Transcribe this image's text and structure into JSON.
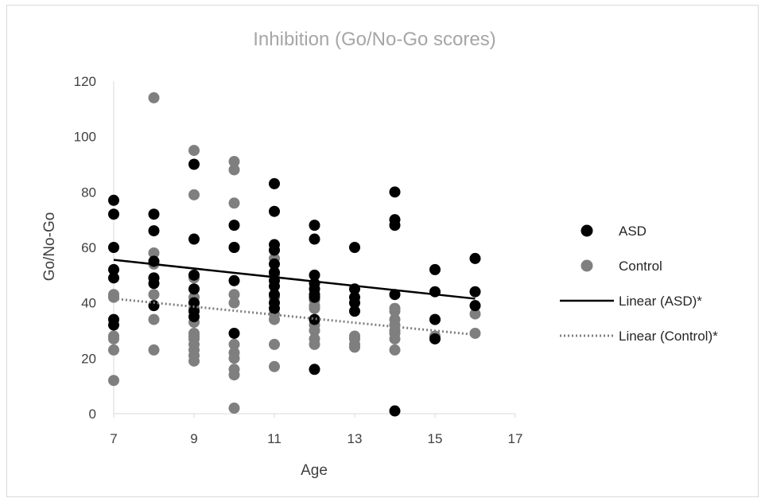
{
  "chart_data": {
    "type": "scatter",
    "title": "Inhibition (Go/No-Go scores)",
    "xlabel": "Age",
    "ylabel": "Go/No-Go",
    "xlim": [
      7,
      17
    ],
    "ylim": [
      0,
      120
    ],
    "xticks": [
      7,
      9,
      11,
      13,
      15,
      17
    ],
    "yticks": [
      0,
      20,
      40,
      60,
      80,
      100,
      120
    ],
    "grid": false,
    "legend_position": "right",
    "series": [
      {
        "name": "ASD",
        "color": "#000000",
        "points": [
          [
            7,
            77
          ],
          [
            7,
            72
          ],
          [
            7,
            60
          ],
          [
            7,
            52
          ],
          [
            7,
            49
          ],
          [
            7,
            34
          ],
          [
            7,
            32
          ],
          [
            8,
            72
          ],
          [
            8,
            66
          ],
          [
            8,
            55
          ],
          [
            8,
            49
          ],
          [
            8,
            47
          ],
          [
            8,
            39
          ],
          [
            9,
            90
          ],
          [
            9,
            63
          ],
          [
            9,
            50
          ],
          [
            9,
            45
          ],
          [
            9,
            40
          ],
          [
            9,
            37
          ],
          [
            9,
            35
          ],
          [
            10,
            68
          ],
          [
            10,
            60
          ],
          [
            10,
            48
          ],
          [
            10,
            29
          ],
          [
            11,
            83
          ],
          [
            11,
            73
          ],
          [
            11,
            61
          ],
          [
            11,
            59
          ],
          [
            11,
            54
          ],
          [
            11,
            51
          ],
          [
            11,
            48
          ],
          [
            11,
            46
          ],
          [
            11,
            43
          ],
          [
            11,
            40
          ],
          [
            11,
            38
          ],
          [
            12,
            68
          ],
          [
            12,
            63
          ],
          [
            12,
            50
          ],
          [
            12,
            47
          ],
          [
            12,
            45
          ],
          [
            12,
            43
          ],
          [
            12,
            42
          ],
          [
            12,
            34
          ],
          [
            12,
            16
          ],
          [
            13,
            60
          ],
          [
            13,
            45
          ],
          [
            13,
            42
          ],
          [
            13,
            40
          ],
          [
            13,
            37
          ],
          [
            14,
            80
          ],
          [
            14,
            70
          ],
          [
            14,
            68
          ],
          [
            14,
            43
          ],
          [
            14,
            1
          ],
          [
            15,
            52
          ],
          [
            15,
            44
          ],
          [
            15,
            34
          ],
          [
            15,
            27
          ],
          [
            16,
            56
          ],
          [
            16,
            44
          ],
          [
            16,
            39
          ]
        ]
      },
      {
        "name": "Control",
        "color": "#7f7f7f",
        "points": [
          [
            7,
            43
          ],
          [
            7,
            42
          ],
          [
            7,
            28
          ],
          [
            7,
            27
          ],
          [
            7,
            23
          ],
          [
            7,
            12
          ],
          [
            8,
            114
          ],
          [
            8,
            58
          ],
          [
            8,
            54
          ],
          [
            8,
            49
          ],
          [
            8,
            43
          ],
          [
            8,
            34
          ],
          [
            8,
            23
          ],
          [
            9,
            95
          ],
          [
            9,
            79
          ],
          [
            9,
            50
          ],
          [
            9,
            49
          ],
          [
            9,
            42
          ],
          [
            9,
            40
          ],
          [
            9,
            38
          ],
          [
            9,
            33
          ],
          [
            9,
            29
          ],
          [
            9,
            28
          ],
          [
            9,
            27
          ],
          [
            9,
            25
          ],
          [
            9,
            23
          ],
          [
            9,
            21
          ],
          [
            9,
            19
          ],
          [
            10,
            91
          ],
          [
            10,
            88
          ],
          [
            10,
            76
          ],
          [
            10,
            60
          ],
          [
            10,
            43
          ],
          [
            10,
            40
          ],
          [
            10,
            25
          ],
          [
            10,
            22
          ],
          [
            10,
            20
          ],
          [
            10,
            16
          ],
          [
            10,
            14
          ],
          [
            10,
            2
          ],
          [
            11,
            56
          ],
          [
            11,
            50
          ],
          [
            11,
            42
          ],
          [
            11,
            36
          ],
          [
            11,
            34
          ],
          [
            11,
            25
          ],
          [
            11,
            17
          ],
          [
            12,
            41
          ],
          [
            12,
            39
          ],
          [
            12,
            38
          ],
          [
            12,
            34
          ],
          [
            12,
            32
          ],
          [
            12,
            30
          ],
          [
            12,
            27
          ],
          [
            12,
            25
          ],
          [
            13,
            28
          ],
          [
            13,
            27
          ],
          [
            13,
            25
          ],
          [
            13,
            24
          ],
          [
            14,
            38
          ],
          [
            14,
            37
          ],
          [
            14,
            34
          ],
          [
            14,
            32
          ],
          [
            14,
            30
          ],
          [
            14,
            29
          ],
          [
            14,
            27
          ],
          [
            14,
            23
          ],
          [
            15,
            34
          ],
          [
            15,
            28
          ],
          [
            16,
            36
          ],
          [
            16,
            29
          ]
        ]
      }
    ],
    "trendlines": [
      {
        "name": "Linear (ASD)*",
        "color": "#000000",
        "style": "solid",
        "x": [
          7,
          16
        ],
        "y": [
          55.5,
          41.5
        ]
      },
      {
        "name": "Linear (Control)*",
        "color": "#808080",
        "style": "dotted",
        "x": [
          7,
          16
        ],
        "y": [
          41.5,
          28.5
        ]
      }
    ]
  }
}
